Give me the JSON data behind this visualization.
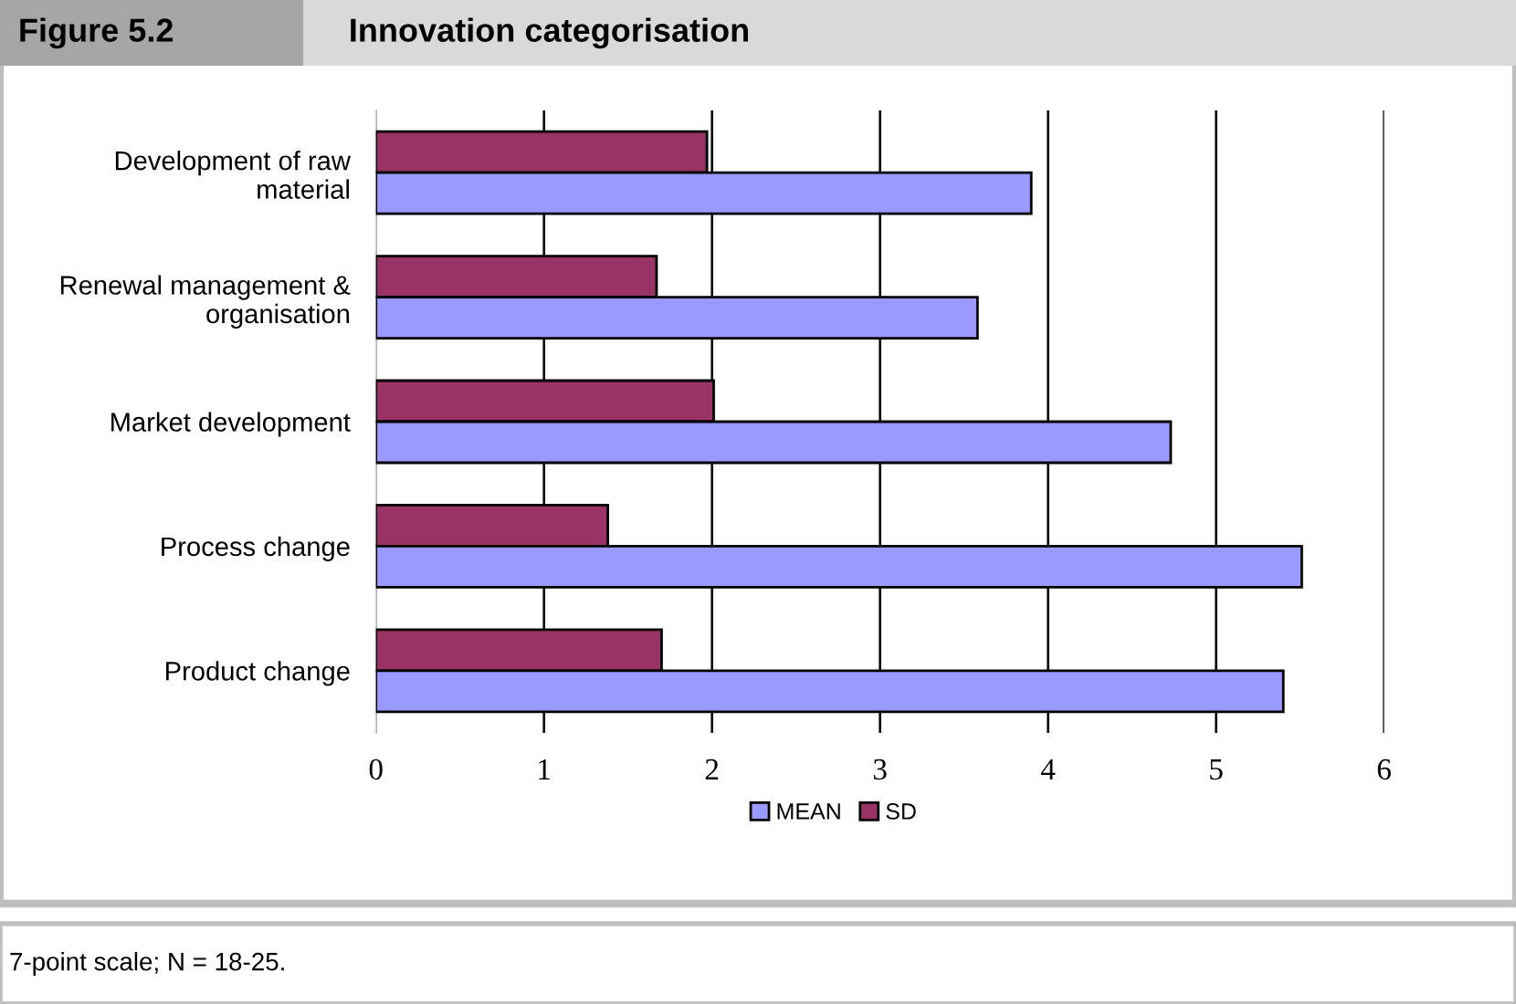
{
  "chart_data": {
    "type": "bar",
    "orientation": "horizontal",
    "title": "Innovation categorisation",
    "annotations": [
      "Figure 5.2",
      "7-point scale; N = 18-25."
    ],
    "categories": [
      "Development of raw\nmaterial",
      "Renewal management &\norganisation",
      "Market development",
      "Process change",
      "Product change"
    ],
    "series": [
      {
        "name": "SD",
        "color": "#993366",
        "values": [
          1.97,
          1.67,
          2.01,
          1.38,
          1.7
        ]
      },
      {
        "name": "MEAN",
        "color": "#9999ff",
        "values": [
          3.9,
          3.58,
          4.73,
          5.51,
          5.4
        ]
      }
    ],
    "xlim": [
      0,
      6
    ],
    "xticks": [
      0,
      1,
      2,
      3,
      4,
      5,
      6
    ],
    "grid": "x",
    "legend": "bottom"
  }
}
